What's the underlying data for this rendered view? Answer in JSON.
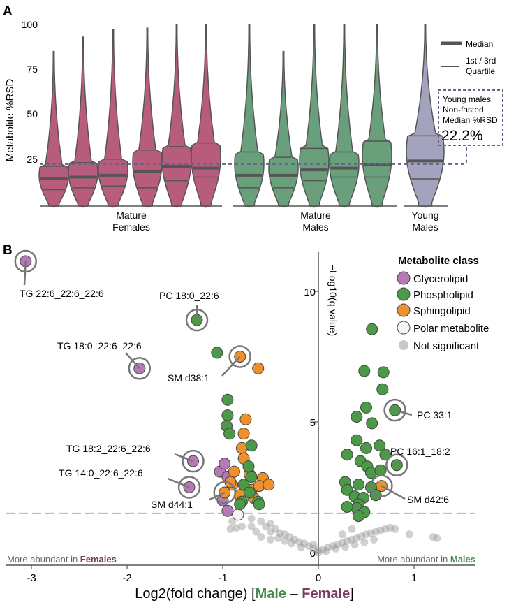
{
  "panel_a": {
    "label": "A",
    "ylabel": "Metabolite %RSD",
    "yticks": [
      "100",
      "75",
      "50",
      "25"
    ],
    "legend": {
      "median": "Median",
      "quartile_1": "1st / 3rd",
      "quartile_2": "Quartile"
    },
    "young_box": [
      "Young males",
      "Non-fasted",
      "Median %RSD"
    ],
    "young_value": "22.2%",
    "groups": [
      {
        "lines": [
          "Mature",
          "Females"
        ]
      },
      {
        "lines": [
          "Mature",
          "Males"
        ]
      },
      {
        "lines": [
          "Young",
          "Males"
        ]
      }
    ]
  },
  "panel_b": {
    "label": "B",
    "ylabel": "−Log10(q-value)",
    "xlabel_prefix": "Log2(fold change)  [",
    "xlabel_male": "Male",
    "xlabel_dash": " – ",
    "xlabel_female": "Female",
    "xlabel_suffix": "]",
    "xticks": [
      "-3",
      "-2",
      "-1",
      "0",
      "1"
    ],
    "yticks": [
      "0",
      "5",
      "10"
    ],
    "more_females_prefix": "More abundant in ",
    "more_females_word": "Females",
    "more_males_prefix": "More abundant in ",
    "more_males_word": "Males",
    "legend_title": "Metabolite class",
    "legend": [
      "Glycerolipid",
      "Phospholipid",
      "Sphingolipid",
      "Polar metabolite",
      "Not significant"
    ],
    "annotations": [
      "TG 22:6_22:6_22:6",
      "PC 18:0_22:6",
      "TG 18:0_22:6_22:6",
      "SM d38:1",
      "TG 18:2_22:6_22:6",
      "TG 14:0_22:6_22:6",
      "SM d44:1",
      "PC 33:1",
      "PC 16:1_18:2",
      "SM d42:6"
    ]
  },
  "colors": {
    "female": "#b85c7c",
    "male": "#6a9f7c",
    "young": "#a3a3bd",
    "dashed": "#66628a",
    "glycerolipid": "#b57ab5",
    "phospholipid": "#4c9a48",
    "sphingolipid": "#f0902a",
    "polar": "#f5f5f5",
    "not_significant": "#9a9a9a",
    "female_text": "#7a3a5e",
    "male_text": "#4a8a4e"
  },
  "chart_data": [
    {
      "type": "violin",
      "ylabel": "Metabolite %RSD",
      "ylim": [
        0,
        100
      ],
      "reference_line": 22.2,
      "groups": [
        "Mature Females",
        "Mature Males",
        "Young Males"
      ],
      "series": [
        {
          "group": "Mature Females",
          "max": 85,
          "q1": 8,
          "median": 14,
          "q3": 21
        },
        {
          "group": "Mature Females",
          "max": 93,
          "q1": 9,
          "median": 15,
          "q3": 23
        },
        {
          "group": "Mature Females",
          "max": 97,
          "q1": 10,
          "median": 16,
          "q3": 25
        },
        {
          "group": "Mature Females",
          "max": 98,
          "q1": 9,
          "median": 18,
          "q3": 30
        },
        {
          "group": "Mature Females",
          "max": 100,
          "q1": 13,
          "median": 21,
          "q3": 32
        },
        {
          "group": "Mature Females",
          "max": 100,
          "q1": 15,
          "median": 20,
          "q3": 34
        },
        {
          "group": "Mature Males",
          "max": 100,
          "q1": 9,
          "median": 16,
          "q3": 29
        },
        {
          "group": "Mature Males",
          "max": 85,
          "q1": 9,
          "median": 16,
          "q3": 26
        },
        {
          "group": "Mature Males",
          "max": 100,
          "q1": 13,
          "median": 19,
          "q3": 31
        },
        {
          "group": "Mature Males",
          "max": 100,
          "q1": 15,
          "median": 20,
          "q3": 29
        },
        {
          "group": "Mature Males",
          "max": 100,
          "q1": 15,
          "median": 22,
          "q3": 35
        },
        {
          "group": "Young Males",
          "max": 100,
          "q1": 14,
          "median": 24,
          "q3": 38
        }
      ]
    },
    {
      "type": "scatter",
      "xlabel": "Log2(fold change)  [Male – Female]",
      "ylabel": "−Log10(q-value)",
      "xlim": [
        -3.25,
        1.4
      ],
      "ylim": [
        -0.4,
        11.6
      ],
      "significance_threshold": 1.5,
      "series": [
        {
          "name": "Glycerolipid",
          "points": [
            [
              -3.06,
              11.15
            ],
            [
              -1.87,
              7.05
            ],
            [
              -1.31,
              3.5
            ],
            [
              -1.35,
              2.5
            ],
            [
              -1.03,
              3.1
            ],
            [
              -0.98,
              3.4
            ],
            [
              -0.95,
              2.9
            ],
            [
              -1.0,
              2.0
            ],
            [
              -0.95,
              1.6
            ]
          ]
        },
        {
          "name": "Phospholipid",
          "points": [
            [
              -1.27,
              8.9
            ],
            [
              -1.06,
              7.65
            ],
            [
              -0.95,
              5.85
            ],
            [
              -0.95,
              5.25
            ],
            [
              -0.96,
              4.85
            ],
            [
              -0.93,
              4.55
            ],
            [
              -0.7,
              4.1
            ],
            [
              -0.73,
              3.3
            ],
            [
              -0.7,
              2.9
            ],
            [
              -0.78,
              2.6
            ],
            [
              -0.72,
              2.3
            ],
            [
              -0.63,
              1.95
            ],
            [
              -0.8,
              1.95
            ],
            [
              -0.82,
              1.85
            ],
            [
              -0.62,
              1.85
            ],
            [
              0.56,
              8.55
            ],
            [
              0.48,
              6.95
            ],
            [
              0.68,
              6.9
            ],
            [
              0.67,
              6.25
            ],
            [
              0.5,
              5.55
            ],
            [
              0.4,
              5.2
            ],
            [
              0.56,
              4.95
            ],
            [
              0.4,
              4.3
            ],
            [
              0.5,
              4.0
            ],
            [
              0.64,
              4.1
            ],
            [
              0.7,
              3.75
            ],
            [
              0.3,
              3.75
            ],
            [
              0.44,
              3.5
            ],
            [
              0.51,
              3.3
            ],
            [
              0.55,
              3.05
            ],
            [
              0.65,
              3.15
            ],
            [
              0.28,
              2.7
            ],
            [
              0.42,
              2.6
            ],
            [
              0.55,
              2.5
            ],
            [
              0.3,
              2.4
            ],
            [
              0.38,
              2.15
            ],
            [
              0.47,
              2.1
            ],
            [
              0.6,
              2.2
            ],
            [
              0.42,
              1.85
            ],
            [
              0.4,
              1.7
            ],
            [
              0.3,
              1.75
            ],
            [
              0.48,
              1.55
            ],
            [
              0.42,
              1.4
            ],
            [
              0.8,
              5.45
            ],
            [
              0.82,
              3.35
            ]
          ]
        },
        {
          "name": "Sphingolipid",
          "points": [
            [
              -0.82,
              7.5
            ],
            [
              -0.63,
              7.05
            ],
            [
              -0.76,
              5.1
            ],
            [
              -0.78,
              4.55
            ],
            [
              -0.8,
              4.0
            ],
            [
              -0.78,
              3.6
            ],
            [
              -0.88,
              3.1
            ],
            [
              -0.72,
              3.0
            ],
            [
              -0.58,
              2.85
            ],
            [
              -0.9,
              2.6
            ],
            [
              -0.7,
              2.4
            ],
            [
              -0.82,
              2.2
            ],
            [
              -0.68,
              2.1
            ],
            [
              -0.98,
              2.3
            ],
            [
              -0.92,
              2.7
            ],
            [
              -0.62,
              2.55
            ],
            [
              -0.52,
              2.6
            ],
            [
              0.66,
              2.55
            ]
          ]
        },
        {
          "name": "Polar metabolite",
          "points": [
            [
              -0.84,
              1.45
            ]
          ]
        },
        {
          "name": "Not significant",
          "points": [
            [
              -0.9,
              1.2
            ],
            [
              -0.86,
              0.95
            ],
            [
              -0.8,
              1.0
            ],
            [
              -0.7,
              1.3
            ],
            [
              -0.6,
              1.2
            ],
            [
              -0.55,
              1.0
            ],
            [
              -0.5,
              1.1
            ],
            [
              -0.45,
              0.9
            ],
            [
              -0.4,
              0.75
            ],
            [
              -0.35,
              0.7
            ],
            [
              -0.3,
              0.6
            ],
            [
              -0.25,
              0.5
            ],
            [
              -0.2,
              0.4
            ],
            [
              -0.15,
              0.35
            ],
            [
              -0.1,
              0.25
            ],
            [
              -0.05,
              0.15
            ],
            [
              0.0,
              0.08
            ],
            [
              0.05,
              0.12
            ],
            [
              0.1,
              0.2
            ],
            [
              0.15,
              0.25
            ],
            [
              0.2,
              0.3
            ],
            [
              0.25,
              0.38
            ],
            [
              0.3,
              0.45
            ],
            [
              0.35,
              0.5
            ],
            [
              0.4,
              0.55
            ],
            [
              0.45,
              0.62
            ],
            [
              0.5,
              0.7
            ],
            [
              0.55,
              0.75
            ],
            [
              0.6,
              0.8
            ],
            [
              0.65,
              0.85
            ],
            [
              0.7,
              0.9
            ],
            [
              0.75,
              0.95
            ],
            [
              0.8,
              0.9
            ],
            [
              -0.65,
              0.8
            ],
            [
              -0.6,
              0.6
            ],
            [
              -0.5,
              0.5
            ],
            [
              -0.42,
              0.55
            ],
            [
              -0.35,
              0.45
            ],
            [
              -0.28,
              0.35
            ],
            [
              -0.18,
              0.2
            ],
            [
              0.08,
              0.05
            ],
            [
              0.18,
              0.15
            ],
            [
              0.28,
              0.22
            ],
            [
              0.38,
              0.3
            ],
            [
              0.48,
              0.4
            ],
            [
              0.58,
              0.5
            ],
            [
              -0.05,
              0.3
            ],
            [
              0.0,
              0.0
            ],
            [
              1.2,
              0.6
            ],
            [
              1.24,
              0.55
            ],
            [
              0.95,
              0.7
            ],
            [
              0.35,
              0.9
            ],
            [
              0.25,
              0.7
            ],
            [
              -0.7,
              1.0
            ],
            [
              -0.92,
              0.9
            ],
            [
              -0.5,
              0.8
            ]
          ]
        }
      ],
      "annotated_points": [
        {
          "label": "TG 22:6_22:6_22:6",
          "x": -3.06,
          "y": 11.15
        },
        {
          "label": "PC 18:0_22:6",
          "x": -1.27,
          "y": 8.9
        },
        {
          "label": "TG 18:0_22:6_22:6",
          "x": -1.87,
          "y": 7.05
        },
        {
          "label": "SM d38:1",
          "x": -0.82,
          "y": 7.5
        },
        {
          "label": "TG 18:2_22:6_22:6",
          "x": -1.31,
          "y": 3.5
        },
        {
          "label": "TG 14:0_22:6_22:6",
          "x": -1.35,
          "y": 2.5
        },
        {
          "label": "SM d44:1",
          "x": -0.98,
          "y": 2.3
        },
        {
          "label": "PC 33:1",
          "x": 0.8,
          "y": 5.45
        },
        {
          "label": "PC 16:1_18:2",
          "x": 0.82,
          "y": 3.35
        },
        {
          "label": "SM d42:6",
          "x": 0.66,
          "y": 2.55
        }
      ]
    }
  ]
}
